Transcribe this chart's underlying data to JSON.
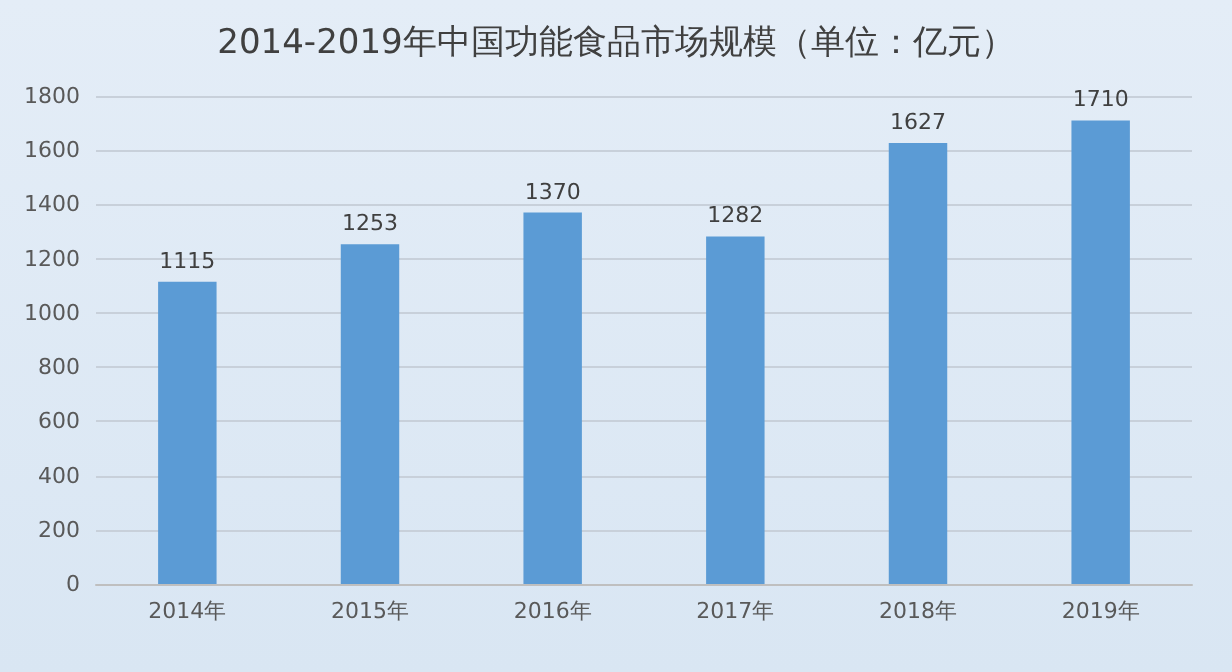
{
  "chart_data": {
    "type": "bar",
    "title": "2014-2019年中国功能食品市场规模（单位：亿元）",
    "categories": [
      "2014年",
      "2015年",
      "2016年",
      "2017年",
      "2018年",
      "2019年"
    ],
    "values": [
      1115,
      1253,
      1370,
      1282,
      1627,
      1710
    ],
    "color": "#5b9bd5",
    "ylim": [
      0,
      1800
    ],
    "yticks": [
      0,
      200,
      400,
      600,
      800,
      1000,
      1200,
      1400,
      1600,
      1800
    ],
    "grid": "y",
    "data_labels": true
  }
}
